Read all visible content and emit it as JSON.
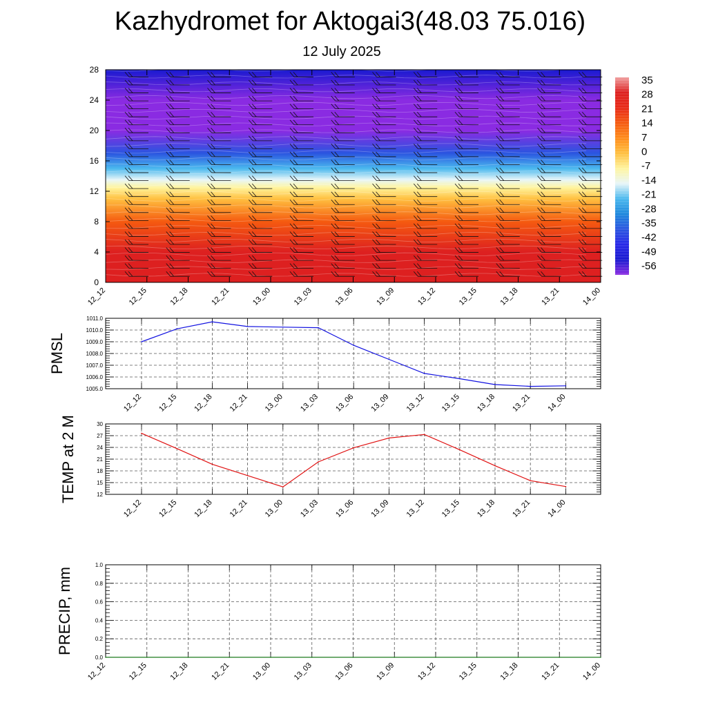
{
  "title": "Kazhydromet for Aktogai3(48.03 75.016)",
  "subtitle": "12 July 2025",
  "chart_data": [
    {
      "type": "heatmap",
      "title": "",
      "ylabel": "",
      "ylim": [
        0,
        28
      ],
      "yticks": [
        0,
        4,
        8,
        12,
        16,
        20,
        24,
        28
      ],
      "x_tick_labels": [
        "12_12",
        "12_15",
        "12_18",
        "12_21",
        "13_00",
        "13_03",
        "13_06",
        "13_09",
        "13_12",
        "13_15",
        "13_18",
        "13_21",
        "14_00"
      ],
      "colorbar": {
        "labels": [
          "35",
          "28",
          "21",
          "14",
          "7",
          "0",
          "-7",
          "-14",
          "-21",
          "-28",
          "-35",
          "-42",
          "-49",
          "-56"
        ],
        "colors": [
          "#f0a0a0",
          "#dd2020",
          "#e82a18",
          "#f55a10",
          "#ff8c1a",
          "#ffc040",
          "#fff5a0",
          "#e8f6f8",
          "#4ab8ee",
          "#1e88dd",
          "#2a55e0",
          "#2828e8",
          "#1a1ad0",
          "#8a2be2"
        ]
      },
      "profile": [
        {
          "level": 0,
          "value": 30
        },
        {
          "level": 4,
          "value": 25
        },
        {
          "level": 8,
          "value": 12
        },
        {
          "level": 11,
          "value": 2
        },
        {
          "level": 12.5,
          "value": -8
        },
        {
          "level": 13.5,
          "value": -14
        },
        {
          "level": 15,
          "value": -24
        },
        {
          "level": 17,
          "value": -38
        },
        {
          "level": 20,
          "value": -54
        },
        {
          "level": 24,
          "value": -56
        },
        {
          "level": 28,
          "value": -50
        }
      ],
      "wind_barbs": true
    },
    {
      "type": "line",
      "ylabel": "PMSL",
      "ylim": [
        1005.0,
        1011.0
      ],
      "yticks": [
        "1005.0",
        "1006.0",
        "1007.0",
        "1008.0",
        "1009.0",
        "1010.0",
        "1011.0"
      ],
      "categories": [
        "12_12",
        "12_15",
        "12_18",
        "12_21",
        "13_00",
        "13_03",
        "13_06",
        "13_09",
        "13_12",
        "13_15",
        "13_18",
        "13_21",
        "14_00"
      ],
      "values": [
        1009.0,
        1010.1,
        1010.7,
        1010.3,
        1010.25,
        1010.2,
        1008.7,
        1007.5,
        1006.3,
        1005.85,
        1005.35,
        1005.2,
        1005.25
      ],
      "line_color": "#1010e0",
      "grid": true
    },
    {
      "type": "line",
      "ylabel": "TEMP at 2 M",
      "ylim": [
        12,
        30
      ],
      "yticks": [
        "12",
        "15",
        "18",
        "21",
        "24",
        "27",
        "30"
      ],
      "categories": [
        "12_12",
        "12_15",
        "12_18",
        "12_21",
        "13_00",
        "13_03",
        "13_06",
        "13_09",
        "13_12",
        "13_15",
        "13_18",
        "13_21",
        "14_00"
      ],
      "values": [
        27.6,
        23.7,
        19.7,
        16.8,
        13.9,
        20.3,
        23.9,
        26.4,
        27.3,
        23.4,
        19.3,
        15.5,
        14.0
      ],
      "line_color": "#e01010",
      "grid": true
    },
    {
      "type": "line",
      "ylabel": "PRECIP, mm",
      "ylim": [
        0.0,
        1.0
      ],
      "yticks": [
        "0.0",
        "0.2",
        "0.4",
        "0.6",
        "0.8",
        "1.0"
      ],
      "categories": [
        "12_12",
        "12_15",
        "12_18",
        "12_21",
        "13_00",
        "13_03",
        "13_06",
        "13_09",
        "13_12",
        "13_15",
        "13_18",
        "13_21",
        "14_00"
      ],
      "values": [
        0,
        0,
        0,
        0,
        0,
        0,
        0,
        0,
        0,
        0,
        0,
        0,
        0
      ],
      "line_color": "#1a7a1a",
      "grid": true
    }
  ]
}
